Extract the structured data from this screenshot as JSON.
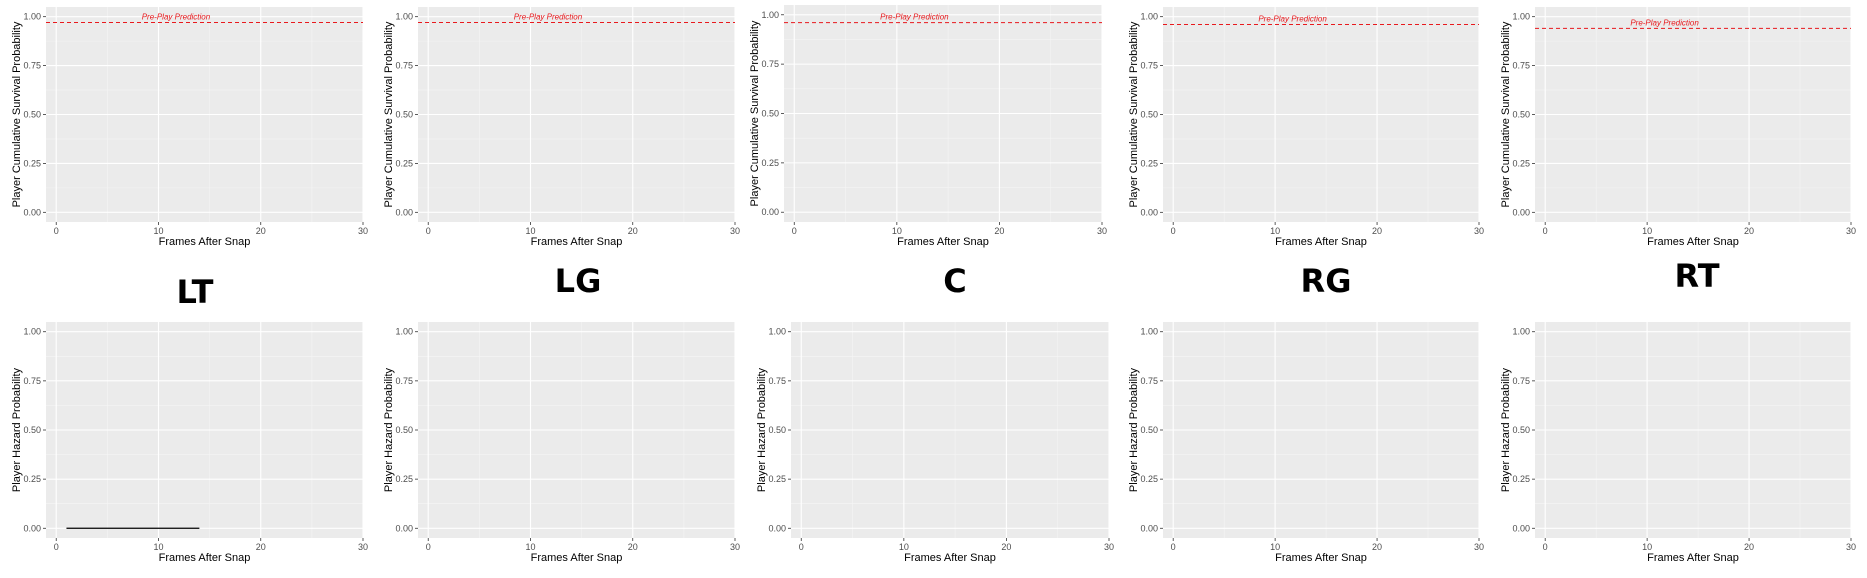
{
  "position_labels": [
    "LT",
    "LG",
    "C",
    "RG",
    "RT"
  ],
  "chart_data": [
    {
      "type": "line",
      "panel": "survival",
      "position": "LT",
      "xlabel": "Frames After Snap",
      "ylabel": "Player Cumulative Survival Probability",
      "xlim": [
        -1,
        30
      ],
      "ylim": [
        0,
        1
      ],
      "xticks": [
        0,
        10,
        20,
        30
      ],
      "yticks": [
        "0.00",
        "0.25",
        "0.50",
        "0.75",
        "1.00"
      ],
      "reference_line": {
        "y": 0.97,
        "label": "Pre-Play Prediction",
        "color": "#e8191d",
        "style": "dashed"
      },
      "series": []
    },
    {
      "type": "line",
      "panel": "survival",
      "position": "LG",
      "xlabel": "Frames After Snap",
      "ylabel": "Player Cumulative Survival Probability",
      "xlim": [
        -1,
        30
      ],
      "ylim": [
        0,
        1
      ],
      "xticks": [
        0,
        10,
        20,
        30
      ],
      "yticks": [
        "0.00",
        "0.25",
        "0.50",
        "0.75",
        "1.00"
      ],
      "reference_line": {
        "y": 0.97,
        "label": "Pre-Play Prediction",
        "color": "#e8191d",
        "style": "dashed"
      },
      "series": []
    },
    {
      "type": "line",
      "panel": "survival",
      "position": "C",
      "xlabel": "Frames After Snap",
      "ylabel": "Player Cumulative Survival Probability",
      "xlim": [
        -1,
        30
      ],
      "ylim": [
        0,
        1
      ],
      "xticks": [
        0,
        10,
        20,
        30
      ],
      "yticks": [
        "0.00",
        "0.25",
        "0.50",
        "0.75",
        "1.00"
      ],
      "reference_line": {
        "y": 0.96,
        "label": "Pre-Play Prediction",
        "color": "#e8191d",
        "style": "dashed"
      },
      "series": []
    },
    {
      "type": "line",
      "panel": "survival",
      "position": "RG",
      "xlabel": "Frames After Snap",
      "ylabel": "Player Cumulative Survival Probability",
      "xlim": [
        -1,
        30
      ],
      "ylim": [
        0,
        1
      ],
      "xticks": [
        0,
        10,
        20,
        30
      ],
      "yticks": [
        "0.00",
        "0.25",
        "0.50",
        "0.75",
        "1.00"
      ],
      "reference_line": {
        "y": 0.96,
        "label": "Pre-Play Prediction",
        "color": "#e8191d",
        "style": "dashed"
      },
      "series": []
    },
    {
      "type": "line",
      "panel": "survival",
      "position": "RT",
      "xlabel": "Frames After Snap",
      "ylabel": "Player Cumulative Survival Probability",
      "xlim": [
        -1,
        30
      ],
      "ylim": [
        0,
        1
      ],
      "xticks": [
        0,
        10,
        20,
        30
      ],
      "yticks": [
        "0.00",
        "0.25",
        "0.50",
        "0.75",
        "1.00"
      ],
      "reference_line": {
        "y": 0.94,
        "label": "Pre-Play Prediction",
        "color": "#e8191d",
        "style": "dashed"
      },
      "series": []
    },
    {
      "type": "line",
      "panel": "hazard",
      "position": "LT",
      "xlabel": "Frames After Snap",
      "ylabel": "Player Hazard Probability",
      "xlim": [
        -1,
        30
      ],
      "ylim": [
        0,
        1
      ],
      "xticks": [
        0,
        10,
        20,
        30
      ],
      "yticks": [
        "0.00",
        "0.25",
        "0.50",
        "0.75",
        "1.00"
      ],
      "series": [
        {
          "x": [
            1,
            14
          ],
          "y": [
            0,
            0
          ],
          "color": "#000000"
        }
      ]
    },
    {
      "type": "line",
      "panel": "hazard",
      "position": "LG",
      "xlabel": "Frames After Snap",
      "ylabel": "Player Hazard Probability",
      "xlim": [
        -1,
        30
      ],
      "ylim": [
        0,
        1
      ],
      "xticks": [
        0,
        10,
        20,
        30
      ],
      "yticks": [
        "0.00",
        "0.25",
        "0.50",
        "0.75",
        "1.00"
      ],
      "series": []
    },
    {
      "type": "line",
      "panel": "hazard",
      "position": "C",
      "xlabel": "Frames After Snap",
      "ylabel": "Player Hazard Probability",
      "xlim": [
        -1,
        30
      ],
      "ylim": [
        0,
        1
      ],
      "xticks": [
        0,
        10,
        20,
        30
      ],
      "yticks": [
        "0.00",
        "0.25",
        "0.50",
        "0.75",
        "1.00"
      ],
      "series": []
    },
    {
      "type": "line",
      "panel": "hazard",
      "position": "RG",
      "xlabel": "Frames After Snap",
      "ylabel": "Player Hazard Probability",
      "xlim": [
        -1,
        30
      ],
      "ylim": [
        0,
        1
      ],
      "xticks": [
        0,
        10,
        20,
        30
      ],
      "yticks": [
        "0.00",
        "0.25",
        "0.50",
        "0.75",
        "1.00"
      ],
      "series": []
    },
    {
      "type": "line",
      "panel": "hazard",
      "position": "RT",
      "xlabel": "Frames After Snap",
      "ylabel": "Player Hazard Probability",
      "xlim": [
        -1,
        30
      ],
      "ylim": [
        0,
        1
      ],
      "xticks": [
        0,
        10,
        20,
        30
      ],
      "yticks": [
        "0.00",
        "0.25",
        "0.50",
        "0.75",
        "1.00"
      ],
      "series": []
    }
  ]
}
